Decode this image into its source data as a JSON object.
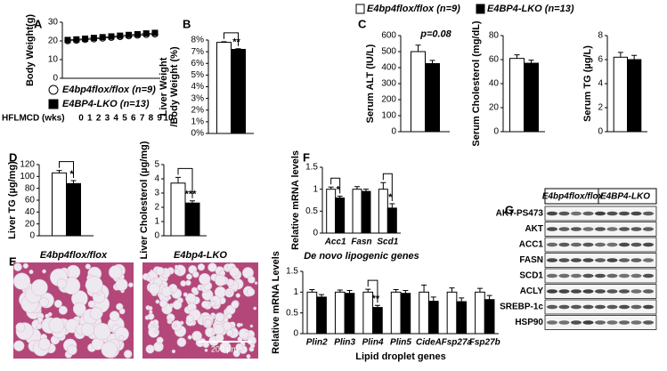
{
  "panel_labels": [
    "A",
    "B",
    "C",
    "D",
    "E",
    "F",
    "G"
  ],
  "chart_data": [
    {
      "type": "line",
      "ylabel": "Body Weight(g)",
      "xlabel": "HFLMCD (wks)",
      "x": [
        0,
        1,
        2,
        3,
        4,
        5,
        6,
        7,
        8,
        9,
        10
      ],
      "xlim": [
        0,
        10
      ],
      "ylim": [
        0,
        30
      ],
      "yticks": [
        0,
        10,
        20,
        30
      ],
      "series": [
        {
          "name": "E4bp4flox/flox (n=9)",
          "color": "#ffffff",
          "marker": "circle",
          "values": [
            20,
            20.3,
            20.7,
            21,
            21.4,
            21.8,
            22.2,
            22.6,
            23,
            23.3,
            23.6
          ]
        },
        {
          "name": "E4BP4-LKO (n=13)",
          "color": "#000000",
          "marker": "square",
          "values": [
            20.5,
            20.8,
            21.2,
            21.6,
            22,
            22.4,
            22.8,
            23.2,
            23.6,
            24,
            24.3
          ]
        }
      ]
    },
    {
      "type": "bar",
      "ylabel": [
        "Liver Weight",
        "/Body Weight (%)"
      ],
      "ylim": [
        0,
        8
      ],
      "yticks": [
        {
          "value": 0,
          "label": "0%"
        },
        {
          "value": 1,
          "label": "1%"
        },
        {
          "value": 2,
          "label": "2%"
        },
        {
          "value": 3,
          "label": "3%"
        },
        {
          "value": 4,
          "label": "4%"
        },
        {
          "value": 5,
          "label": "5%"
        },
        {
          "value": 6,
          "label": "6%"
        },
        {
          "value": 7,
          "label": "7%"
        },
        {
          "value": 8,
          "label": "8%"
        }
      ],
      "series": [
        {
          "color": "#ffffff",
          "values": [
            7.8
          ],
          "errors": [
            0.06
          ]
        },
        {
          "color": "#000000",
          "values": [
            7.2
          ],
          "errors": [
            0.06
          ]
        }
      ],
      "brackets": true,
      "annotations": [
        {
          "text": "**",
          "category": 0
        }
      ]
    },
    {
      "type": "bar",
      "ylabel": "Serum ALT (IU/L)",
      "ylim": [
        0,
        600
      ],
      "yticks": [
        0,
        100,
        200,
        300,
        400,
        500,
        600
      ],
      "series": [
        {
          "name": "E4bp4flox/flox (n=9)",
          "color": "#ffffff",
          "values": [
            500
          ],
          "errors": [
            40
          ]
        },
        {
          "name": "E4BP4-LKO (n=13)",
          "color": "#000000",
          "values": [
            425
          ],
          "errors": [
            20
          ]
        }
      ],
      "brackets": false,
      "annotations": [
        {
          "text": "p=0.08",
          "category": 0
        }
      ]
    },
    {
      "type": "bar",
      "ylabel": "Serum Cholesterol (mg/dL)",
      "ylim": [
        0,
        80
      ],
      "yticks": [
        0,
        20,
        40,
        60,
        80
      ],
      "series": [
        {
          "color": "#ffffff",
          "values": [
            61
          ],
          "errors": [
            3
          ]
        },
        {
          "color": "#000000",
          "values": [
            57
          ],
          "errors": [
            2.5
          ]
        }
      ]
    },
    {
      "type": "bar",
      "ylabel": "Serum TG (µg/L)",
      "ylim": [
        0,
        8
      ],
      "yticks": [
        0,
        2,
        4,
        6,
        8
      ],
      "series": [
        {
          "color": "#ffffff",
          "values": [
            6.2
          ],
          "errors": [
            0.4
          ]
        },
        {
          "color": "#000000",
          "values": [
            6.0
          ],
          "errors": [
            0.35
          ]
        }
      ]
    },
    {
      "type": "bar",
      "ylabel": "Liver TG (µg/mg)",
      "ylim": [
        0,
        120
      ],
      "yticks": [
        0,
        20,
        40,
        60,
        80,
        100,
        120
      ],
      "series": [
        {
          "color": "#ffffff",
          "values": [
            106
          ],
          "errors": [
            4
          ]
        },
        {
          "color": "#000000",
          "values": [
            88
          ],
          "errors": [
            5
          ]
        }
      ],
      "brackets": true,
      "annotations": [
        {
          "text": "*",
          "category": 0
        }
      ]
    },
    {
      "type": "bar",
      "ylabel": "Liver Cholesterol (µg/mg)",
      "ylim": [
        0,
        5
      ],
      "yticks": [
        0,
        1,
        2,
        3,
        4,
        5
      ],
      "series": [
        {
          "color": "#ffffff",
          "values": [
            3.7
          ],
          "errors": [
            0.4
          ]
        },
        {
          "color": "#000000",
          "values": [
            2.3
          ],
          "errors": [
            0.15
          ]
        }
      ],
      "brackets": true,
      "annotations": [
        {
          "text": "***",
          "category": 0
        }
      ]
    },
    {
      "type": "bar",
      "ylabel": "Relative mRNA levels",
      "xlabel": "De novo lipogenic genes",
      "ylim": [
        0,
        1.5
      ],
      "yticks": [
        0,
        0.5,
        1,
        1.5
      ],
      "categories": [
        "Acc1",
        "Fasn",
        "Scd1"
      ],
      "series": [
        {
          "color": "#ffffff",
          "values": [
            1,
            1,
            1
          ],
          "errors": [
            0.05,
            0.06,
            0.15
          ]
        },
        {
          "color": "#000000",
          "values": [
            0.8,
            0.95,
            0.57
          ],
          "errors": [
            0.04,
            0.05,
            0.1
          ]
        }
      ],
      "brackets": true,
      "annotations": [
        {
          "text": "*",
          "category": 0
        },
        {
          "text": "*",
          "category": 2
        }
      ]
    },
    {
      "type": "bar",
      "ylabel": "Relative mRNA Levels",
      "xlabel": "Lipid droplet genes",
      "ylim": [
        0,
        1.5
      ],
      "yticks": [
        0,
        0.5,
        1,
        1.5
      ],
      "categories": [
        "Plin2",
        "Plin3",
        "Plin4",
        "Plin5",
        "CideA",
        "Fsp27a",
        "Fsp27b"
      ],
      "series": [
        {
          "color": "#ffffff",
          "values": [
            1,
            1,
            1,
            1,
            1,
            1,
            1
          ],
          "errors": [
            0.06,
            0.05,
            0.07,
            0.06,
            0.17,
            0.1,
            0.09
          ]
        },
        {
          "color": "#000000",
          "values": [
            0.88,
            0.97,
            0.63,
            0.97,
            0.78,
            0.77,
            0.82
          ],
          "errors": [
            0.06,
            0.07,
            0.05,
            0.07,
            0.1,
            0.09,
            0.1
          ]
        }
      ],
      "brackets": true,
      "annotations": [
        {
          "text": "**",
          "category": 2
        }
      ]
    }
  ],
  "histology": {
    "labels": [
      "E4bp4flox/flox",
      "E4bp4-LKO"
    ],
    "scale_bar": "200 µm"
  },
  "blot": {
    "groups": [
      "E4bp4flox/flox",
      "E4BP4-LKO"
    ],
    "rows": [
      "AKT-PS473",
      "AKT",
      "ACC1",
      "FASN",
      "SCD1",
      "ACLY",
      "SREBP-1c",
      "HSP90"
    ]
  }
}
